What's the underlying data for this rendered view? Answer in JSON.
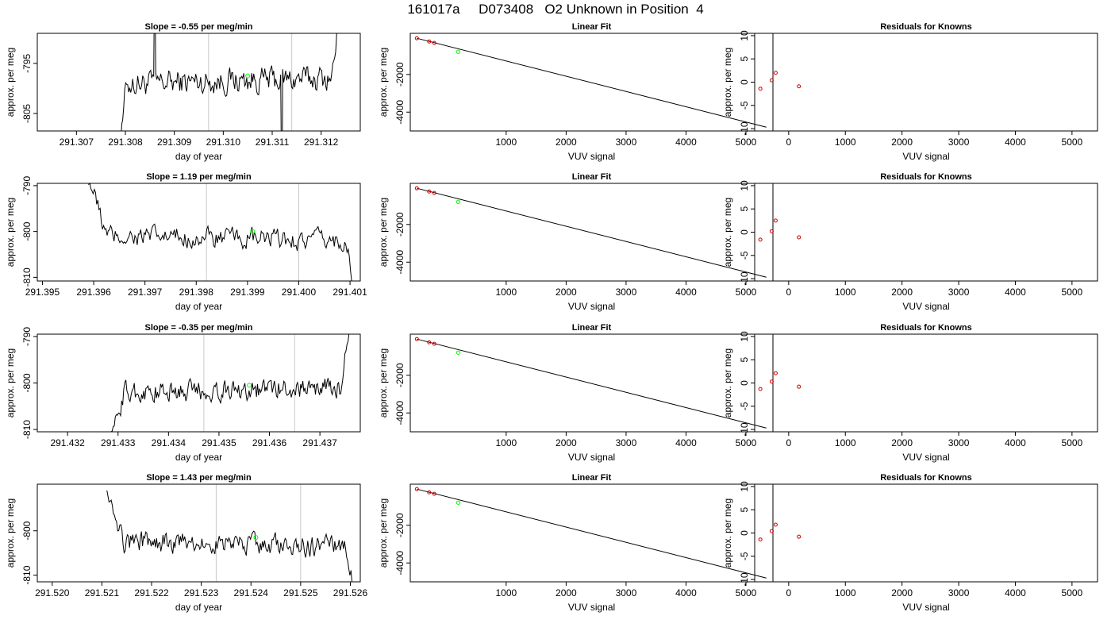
{
  "figure_title": "161017a     D073408   O2 Unknown in Position  4",
  "colors": {
    "trace": "#000000",
    "marker_current": "#00ff00",
    "reference_lines": "#c8c8c8",
    "known_points": "#cc0000",
    "fit_line": "#000000"
  },
  "chart_data": [
    {
      "type": "line",
      "title": "Slope =  -0.55  per meg/min",
      "xlabel": "day of year",
      "ylabel": "approx. per meg",
      "xlim": [
        291.3062,
        291.3128
      ],
      "ylim": [
        -808.5,
        -789
      ],
      "xticks": [
        "291.307",
        "291.308",
        "291.309",
        "291.310",
        "291.311",
        "291.312"
      ],
      "yticks": [
        "-795",
        "-805"
      ],
      "xtick_values": [
        291.307,
        291.308,
        291.309,
        291.31,
        291.311,
        291.312
      ],
      "ytick_values": [
        -795,
        -805
      ],
      "vlines": [
        291.3097,
        291.3114
      ],
      "highlight": {
        "x": 291.3105,
        "y": -797.5
      },
      "trace_start": 291.3077,
      "trace_end": 291.3124,
      "trace_start_level": -830,
      "trace_mid_level": -798.5,
      "trace_end_level": -784,
      "noise": 2.2,
      "spikes": [
        {
          "x": 291.3086,
          "y": -770
        },
        {
          "x": 291.3112,
          "y": -830
        }
      ]
    },
    {
      "type": "scatter",
      "title": "Linear Fit",
      "xlabel": "VUV signal",
      "ylabel": "approx. per meg",
      "xlim": [
        -600,
        5450
      ],
      "ylim": [
        -5000,
        180
      ],
      "xticks": [
        "1000",
        "2000",
        "3000",
        "4000",
        "5000"
      ],
      "yticks": [
        "-2000",
        "-4000"
      ],
      "xtick_values": [
        1000,
        2000,
        3000,
        4000,
        5000
      ],
      "ytick_values": [
        -2000,
        -4000
      ],
      "knowns": [
        {
          "x": -490,
          "y": -80
        },
        {
          "x": -285,
          "y": -250
        },
        {
          "x": -200,
          "y": -330
        }
      ],
      "unknown": {
        "x": 200,
        "y": -800
      },
      "fit_line": {
        "x": [
          -490,
          5340
        ],
        "y": [
          -80,
          -4800
        ]
      }
    },
    {
      "type": "scatter",
      "title": "Residuals for Knowns",
      "xlabel": "VUV signal",
      "ylabel": "approx. per meg",
      "xlim": [
        -600,
        5450
      ],
      "ylim": [
        -10.5,
        10.5
      ],
      "xticks": [
        "0",
        "1000",
        "2000",
        "3000",
        "4000",
        "5000"
      ],
      "yticks": [
        "-10",
        "-5",
        "0",
        "5",
        "10"
      ],
      "xtick_values": [
        0,
        1000,
        2000,
        3000,
        4000,
        5000
      ],
      "ytick_values": [
        -10,
        -5,
        0,
        5,
        10
      ],
      "points": [
        {
          "x": -500,
          "y": -1.4
        },
        {
          "x": -300,
          "y": 0.4
        },
        {
          "x": -230,
          "y": 2.0
        },
        {
          "x": 180,
          "y": -0.9
        }
      ]
    },
    {
      "type": "line",
      "title": "Slope =  1.19  per meg/min",
      "xlabel": "day of year",
      "ylabel": "approx. per meg",
      "xlim": [
        291.3949,
        291.4012
      ],
      "ylim": [
        -810.8,
        -789.5
      ],
      "xticks": [
        "291.395",
        "291.396",
        "291.397",
        "291.398",
        "291.399",
        "291.400",
        "291.401"
      ],
      "yticks": [
        "-790",
        "-800",
        "-810"
      ],
      "xtick_values": [
        291.395,
        291.396,
        291.397,
        291.398,
        291.399,
        291.4,
        291.401
      ],
      "ytick_values": [
        -790,
        -800,
        -810
      ],
      "vlines": [
        291.3982,
        291.4
      ],
      "highlight": {
        "x": 291.3991,
        "y": -800
      },
      "trace_start": 291.3959,
      "trace_end": 291.4011,
      "trace_start_level": -788,
      "trace_mid_level": -801.5,
      "trace_end_level": -813,
      "noise": 1.9,
      "spikes": []
    },
    {
      "type": "scatter",
      "title": "Linear Fit",
      "xlabel": "VUV signal",
      "ylabel": "approx. per meg",
      "xlim": [
        -600,
        5450
      ],
      "ylim": [
        -5000,
        180
      ],
      "xticks": [
        "1000",
        "2000",
        "3000",
        "4000",
        "5000"
      ],
      "yticks": [
        "-2000",
        "-4000"
      ],
      "xtick_values": [
        1000,
        2000,
        3000,
        4000,
        5000
      ],
      "ytick_values": [
        -2000,
        -4000
      ],
      "knowns": [
        {
          "x": -490,
          "y": -80
        },
        {
          "x": -285,
          "y": -250
        },
        {
          "x": -200,
          "y": -330
        }
      ],
      "unknown": {
        "x": 200,
        "y": -800
      },
      "fit_line": {
        "x": [
          -490,
          5340
        ],
        "y": [
          -80,
          -4800
        ]
      }
    },
    {
      "type": "scatter",
      "title": "Residuals for Knowns",
      "xlabel": "VUV signal",
      "ylabel": "approx. per meg",
      "xlim": [
        -600,
        5450
      ],
      "ylim": [
        -10.5,
        10.5
      ],
      "xticks": [
        "0",
        "1000",
        "2000",
        "3000",
        "4000",
        "5000"
      ],
      "yticks": [
        "-10",
        "-5",
        "0",
        "5",
        "10"
      ],
      "xtick_values": [
        0,
        1000,
        2000,
        3000,
        4000,
        5000
      ],
      "ytick_values": [
        -10,
        -5,
        0,
        5,
        10
      ],
      "points": [
        {
          "x": -500,
          "y": -1.6
        },
        {
          "x": -300,
          "y": 0.2
        },
        {
          "x": -230,
          "y": 2.5
        },
        {
          "x": 180,
          "y": -1.1
        }
      ]
    },
    {
      "type": "line",
      "title": "Slope =  -0.35  per meg/min",
      "xlabel": "day of year",
      "ylabel": "approx. per meg",
      "xlim": [
        291.4314,
        291.4378
      ],
      "ylim": [
        -810.5,
        -789.5
      ],
      "xticks": [
        "291.432",
        "291.433",
        "291.434",
        "291.435",
        "291.436",
        "291.437"
      ],
      "yticks": [
        "-790",
        "-800",
        "-810"
      ],
      "xtick_values": [
        291.432,
        291.433,
        291.434,
        291.435,
        291.436,
        291.437
      ],
      "ytick_values": [
        -790,
        -800,
        -810
      ],
      "vlines": [
        291.4347,
        291.4365
      ],
      "highlight": {
        "x": 291.4356,
        "y": -800.5
      },
      "trace_start": 291.4328,
      "trace_end": 291.4376,
      "trace_start_level": -814,
      "trace_mid_level": -801.5,
      "trace_end_level": -788,
      "noise": 2.0,
      "spikes": []
    },
    {
      "type": "scatter",
      "title": "Linear Fit",
      "xlabel": "VUV signal",
      "ylabel": "approx. per meg",
      "xlim": [
        -600,
        5450
      ],
      "ylim": [
        -5000,
        180
      ],
      "xticks": [
        "1000",
        "2000",
        "3000",
        "4000",
        "5000"
      ],
      "yticks": [
        "-2000",
        "-4000"
      ],
      "xtick_values": [
        1000,
        2000,
        3000,
        4000,
        5000
      ],
      "ytick_values": [
        -2000,
        -4000
      ],
      "knowns": [
        {
          "x": -490,
          "y": -80
        },
        {
          "x": -285,
          "y": -250
        },
        {
          "x": -200,
          "y": -330
        }
      ],
      "unknown": {
        "x": 200,
        "y": -800
      },
      "fit_line": {
        "x": [
          -490,
          5340
        ],
        "y": [
          -80,
          -4800
        ]
      }
    },
    {
      "type": "scatter",
      "title": "Residuals for Knowns",
      "xlabel": "VUV signal",
      "ylabel": "approx. per meg",
      "xlim": [
        -600,
        5450
      ],
      "ylim": [
        -10.5,
        10.5
      ],
      "xticks": [
        "0",
        "1000",
        "2000",
        "3000",
        "4000",
        "5000"
      ],
      "yticks": [
        "-10",
        "-5",
        "0",
        "5",
        "10"
      ],
      "xtick_values": [
        0,
        1000,
        2000,
        3000,
        4000,
        5000
      ],
      "ytick_values": [
        -10,
        -5,
        0,
        5,
        10
      ],
      "points": [
        {
          "x": -500,
          "y": -1.3
        },
        {
          "x": -300,
          "y": 0.3
        },
        {
          "x": -230,
          "y": 2.1
        },
        {
          "x": 180,
          "y": -0.8
        }
      ]
    },
    {
      "type": "line",
      "title": "Slope =  1.43  per meg/min",
      "xlabel": "day of year",
      "ylabel": "approx. per meg",
      "xlim": [
        291.5197,
        291.5262
      ],
      "ylim": [
        -811.5,
        -789.5
      ],
      "xticks": [
        "291.520",
        "291.521",
        "291.522",
        "291.523",
        "291.524",
        "291.525",
        "291.526"
      ],
      "yticks": [
        "-800",
        "-810"
      ],
      "xtick_values": [
        291.52,
        291.521,
        291.522,
        291.523,
        291.524,
        291.525,
        291.526
      ],
      "ytick_values": [
        -800,
        -810
      ],
      "vlines": [
        291.5233,
        291.525
      ],
      "highlight": {
        "x": 291.5241,
        "y": -801.5
      },
      "trace_start": 291.5211,
      "trace_end": 291.5261,
      "trace_start_level": -789,
      "trace_mid_level": -803,
      "trace_end_level": -814,
      "noise": 2.0,
      "spikes": []
    },
    {
      "type": "scatter",
      "title": "Linear Fit",
      "xlabel": "VUV signal",
      "ylabel": "approx. per meg",
      "xlim": [
        -600,
        5450
      ],
      "ylim": [
        -5000,
        180
      ],
      "xticks": [
        "1000",
        "2000",
        "3000",
        "4000",
        "5000"
      ],
      "yticks": [
        "-2000",
        "-4000"
      ],
      "xtick_values": [
        1000,
        2000,
        3000,
        4000,
        5000
      ],
      "ytick_values": [
        -2000,
        -4000
      ],
      "knowns": [
        {
          "x": -490,
          "y": -80
        },
        {
          "x": -285,
          "y": -250
        },
        {
          "x": -200,
          "y": -330
        }
      ],
      "unknown": {
        "x": 200,
        "y": -800
      },
      "fit_line": {
        "x": [
          -490,
          5340
        ],
        "y": [
          -80,
          -4800
        ]
      }
    },
    {
      "type": "scatter",
      "title": "Residuals for Knowns",
      "xlabel": "VUV signal",
      "ylabel": "approx. per meg",
      "xlim": [
        -600,
        5450
      ],
      "ylim": [
        -10.5,
        10.5
      ],
      "xticks": [
        "0",
        "1000",
        "2000",
        "3000",
        "4000",
        "5000"
      ],
      "yticks": [
        "-10",
        "-5",
        "0",
        "5",
        "10"
      ],
      "xtick_values": [
        0,
        1000,
        2000,
        3000,
        4000,
        5000
      ],
      "ytick_values": [
        -10,
        -5,
        0,
        5,
        10
      ],
      "points": [
        {
          "x": -500,
          "y": -1.4
        },
        {
          "x": -300,
          "y": 0.4
        },
        {
          "x": -230,
          "y": 1.8
        },
        {
          "x": 180,
          "y": -0.8
        }
      ]
    }
  ]
}
